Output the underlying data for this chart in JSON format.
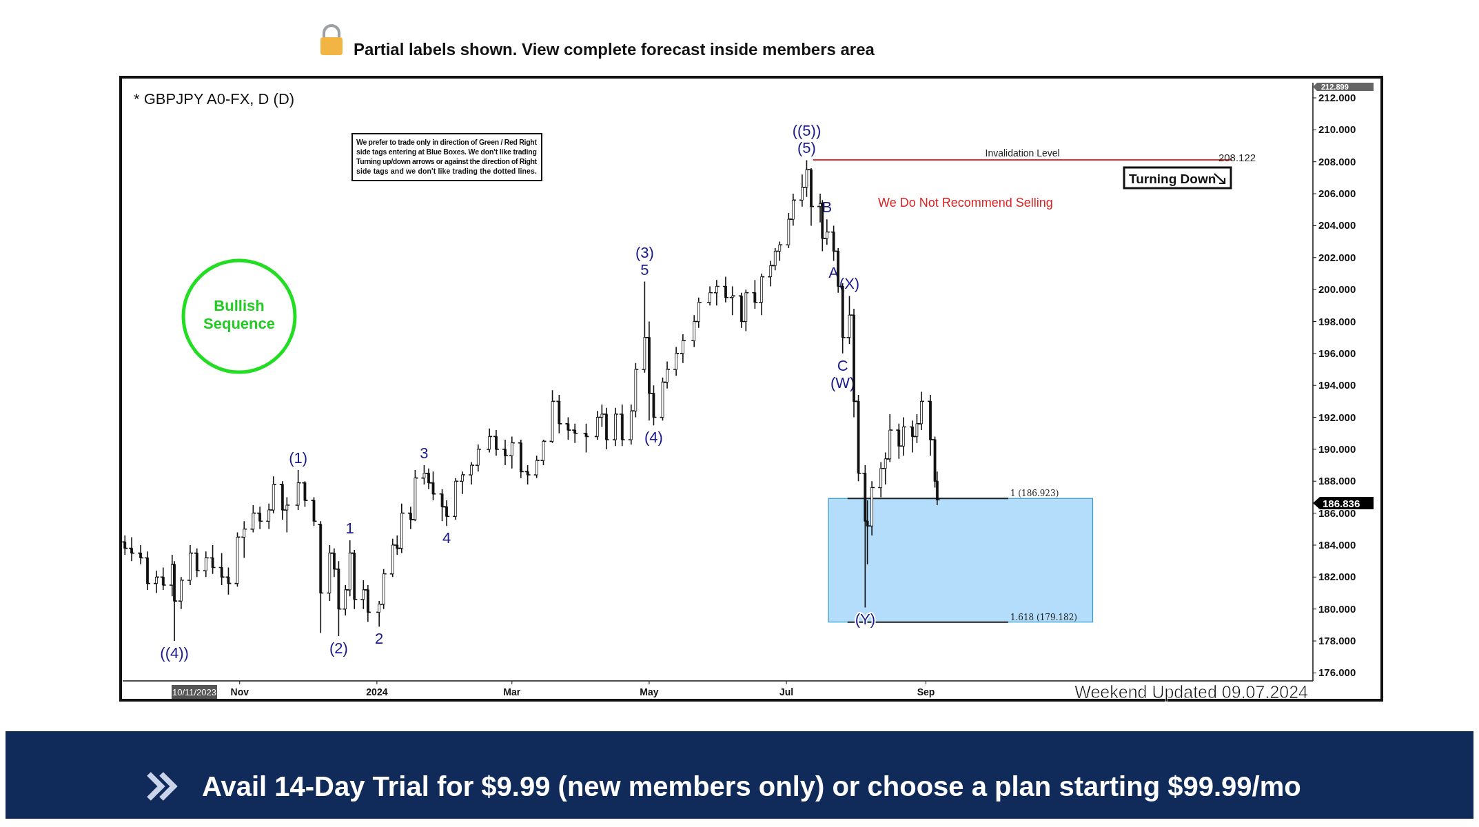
{
  "chart_data": {
    "type": "candlestick",
    "title": "* GBPJPY A0-FX, D (D)",
    "x": [
      "2023-09-11",
      "2023-09-14",
      "2023-09-18",
      "2023-09-21",
      "2023-09-25",
      "2023-09-28",
      "2023-10-02",
      "2023-10-03",
      "2023-10-06",
      "2023-10-10",
      "2023-10-13",
      "2023-10-17",
      "2023-10-20",
      "2023-10-24",
      "2023-10-27",
      "2023-10-31",
      "2023-11-03",
      "2023-11-07",
      "2023-11-10",
      "2023-11-14",
      "2023-11-16",
      "2023-11-20",
      "2023-11-22",
      "2023-11-27",
      "2023-11-30",
      "2023-12-04",
      "2023-12-07",
      "2023-12-11",
      "2023-12-13",
      "2023-12-15",
      "2023-12-18",
      "2023-12-20",
      "2023-12-22",
      "2023-12-26",
      "2023-12-28",
      "2024-01-02",
      "2024-01-04",
      "2024-01-08",
      "2024-01-10",
      "2024-01-12",
      "2024-01-16",
      "2024-01-18",
      "2024-01-22",
      "2024-01-24",
      "2024-01-26",
      "2024-01-30",
      "2024-02-01",
      "2024-02-05",
      "2024-02-08",
      "2024-02-12",
      "2024-02-15",
      "2024-02-20",
      "2024-02-23",
      "2024-02-27",
      "2024-03-01",
      "2024-03-05",
      "2024-03-08",
      "2024-03-12",
      "2024-03-15",
      "2024-03-19",
      "2024-03-22",
      "2024-03-26",
      "2024-03-29",
      "2024-04-03",
      "2024-04-08",
      "2024-04-10",
      "2024-04-12",
      "2024-04-16",
      "2024-04-19",
      "2024-04-23",
      "2024-04-25",
      "2024-04-29",
      "2024-05-01",
      "2024-05-03",
      "2024-05-07",
      "2024-05-09",
      "2024-05-13",
      "2024-05-16",
      "2024-05-21",
      "2024-05-23",
      "2024-05-28",
      "2024-05-31",
      "2024-06-04",
      "2024-06-07",
      "2024-06-11",
      "2024-06-13",
      "2024-06-17",
      "2024-06-20",
      "2024-06-24",
      "2024-06-26",
      "2024-06-28",
      "2024-07-02",
      "2024-07-04",
      "2024-07-08",
      "2024-07-10",
      "2024-07-12",
      "2024-07-16",
      "2024-07-17",
      "2024-07-19",
      "2024-07-22",
      "2024-07-24",
      "2024-07-26",
      "2024-07-29",
      "2024-07-31",
      "2024-08-02",
      "2024-08-05",
      "2024-08-06",
      "2024-08-08",
      "2024-08-12",
      "2024-08-14",
      "2024-08-16",
      "2024-08-20",
      "2024-08-22",
      "2024-08-26",
      "2024-08-28",
      "2024-08-30",
      "2024-09-03",
      "2024-09-05",
      "2024-09-06"
    ],
    "ohlc": [
      [
        184.2,
        184.6,
        183.4,
        183.8
      ],
      [
        183.8,
        184.5,
        183.0,
        183.5
      ],
      [
        183.5,
        184.0,
        182.8,
        183.2
      ],
      [
        183.2,
        183.6,
        181.2,
        181.6
      ],
      [
        181.6,
        182.4,
        181.0,
        182.0
      ],
      [
        182.0,
        182.6,
        181.2,
        181.5
      ],
      [
        181.5,
        183.4,
        180.8,
        182.8
      ],
      [
        182.8,
        183.0,
        178.0,
        180.5
      ],
      [
        180.5,
        182.0,
        180.0,
        181.8
      ],
      [
        181.8,
        184.0,
        181.5,
        183.5
      ],
      [
        183.5,
        183.8,
        182.0,
        182.4
      ],
      [
        182.4,
        183.6,
        182.0,
        183.2
      ],
      [
        183.2,
        184.0,
        182.2,
        182.6
      ],
      [
        182.6,
        183.5,
        181.5,
        182.0
      ],
      [
        182.0,
        182.6,
        180.9,
        181.6
      ],
      [
        181.6,
        184.8,
        181.4,
        184.5
      ],
      [
        184.5,
        185.5,
        183.2,
        185.0
      ],
      [
        185.0,
        186.5,
        184.8,
        186.0
      ],
      [
        186.0,
        186.4,
        185.0,
        185.5
      ],
      [
        185.5,
        186.6,
        185.0,
        186.2
      ],
      [
        186.2,
        188.3,
        186.0,
        187.8
      ],
      [
        187.8,
        188.0,
        185.6,
        186.2
      ],
      [
        186.2,
        187.0,
        184.8,
        186.5
      ],
      [
        186.5,
        188.7,
        186.2,
        187.9
      ],
      [
        187.9,
        188.0,
        186.4,
        186.8
      ],
      [
        186.8,
        187.0,
        185.2,
        185.5
      ],
      [
        185.3,
        185.5,
        178.5,
        181.0
      ],
      [
        181.0,
        184.0,
        180.5,
        183.5
      ],
      [
        183.5,
        183.8,
        182.0,
        182.5
      ],
      [
        182.5,
        183.0,
        178.3,
        180.0
      ],
      [
        180.0,
        181.5,
        179.6,
        181.2
      ],
      [
        181.2,
        184.3,
        180.8,
        183.5
      ],
      [
        183.5,
        183.7,
        180.0,
        180.6
      ],
      [
        180.6,
        181.8,
        180.0,
        181.2
      ],
      [
        181.2,
        181.5,
        179.2,
        179.8
      ],
      [
        179.8,
        180.5,
        178.9,
        180.3
      ],
      [
        180.3,
        182.5,
        180.0,
        182.2
      ],
      [
        182.2,
        184.4,
        182.0,
        184.0
      ],
      [
        184.0,
        184.6,
        183.4,
        183.8
      ],
      [
        183.8,
        186.6,
        183.5,
        186.0
      ],
      [
        186.0,
        186.4,
        185.0,
        185.6
      ],
      [
        185.6,
        188.7,
        185.5,
        188.2
      ],
      [
        188.2,
        189.0,
        187.8,
        188.5
      ],
      [
        188.5,
        188.8,
        187.5,
        187.9
      ],
      [
        187.9,
        188.6,
        186.8,
        187.2
      ],
      [
        187.2,
        187.5,
        185.5,
        186.4
      ],
      [
        186.4,
        186.8,
        185.2,
        185.8
      ],
      [
        185.8,
        188.2,
        185.6,
        188.0
      ],
      [
        188.0,
        188.6,
        187.2,
        188.4
      ],
      [
        188.4,
        189.2,
        187.8,
        189.0
      ],
      [
        189.0,
        190.3,
        188.6,
        190.0
      ],
      [
        190.0,
        191.3,
        189.8,
        190.8
      ],
      [
        190.8,
        191.2,
        189.6,
        190.0
      ],
      [
        190.0,
        190.6,
        189.0,
        189.6
      ],
      [
        189.6,
        190.8,
        188.8,
        190.4
      ],
      [
        190.4,
        190.6,
        188.2,
        188.6
      ],
      [
        188.6,
        189.0,
        187.8,
        188.4
      ],
      [
        188.4,
        189.6,
        188.2,
        189.3
      ],
      [
        189.3,
        190.6,
        189.0,
        190.5
      ],
      [
        190.5,
        193.7,
        190.4,
        193.0
      ],
      [
        193.0,
        193.4,
        191.0,
        191.6
      ],
      [
        191.6,
        192.0,
        190.6,
        191.2
      ],
      [
        191.2,
        191.6,
        190.4,
        191.0
      ],
      [
        191.0,
        191.6,
        189.8,
        190.8
      ],
      [
        190.8,
        192.4,
        190.6,
        192.0
      ],
      [
        192.0,
        192.8,
        191.4,
        192.2
      ],
      [
        192.2,
        192.6,
        190.0,
        190.6
      ],
      [
        190.6,
        192.6,
        190.2,
        192.2
      ],
      [
        192.2,
        192.8,
        190.2,
        190.6
      ],
      [
        190.6,
        192.8,
        190.3,
        192.4
      ],
      [
        192.4,
        195.4,
        192.0,
        195.0
      ],
      [
        195.0,
        200.5,
        194.8,
        197.0
      ],
      [
        197.0,
        198.0,
        191.8,
        193.5
      ],
      [
        193.5,
        194.0,
        191.5,
        192.0
      ],
      [
        192.0,
        194.5,
        191.8,
        194.2
      ],
      [
        194.2,
        195.5,
        193.8,
        195.0
      ],
      [
        195.0,
        196.4,
        194.6,
        196.0
      ],
      [
        196.0,
        197.2,
        195.4,
        196.8
      ],
      [
        196.8,
        198.4,
        196.4,
        198.0
      ],
      [
        198.0,
        199.5,
        197.6,
        199.2
      ],
      [
        199.2,
        200.2,
        199.0,
        199.8
      ],
      [
        199.8,
        200.6,
        199.0,
        200.2
      ],
      [
        200.2,
        200.8,
        199.2,
        199.5
      ],
      [
        199.5,
        200.2,
        198.4,
        199.6
      ],
      [
        199.6,
        199.8,
        197.6,
        198.0
      ],
      [
        198.0,
        200.0,
        197.4,
        199.8
      ],
      [
        199.8,
        200.6,
        198.8,
        199.2
      ],
      [
        199.2,
        201.0,
        198.4,
        200.8
      ],
      [
        200.8,
        201.8,
        200.2,
        201.5
      ],
      [
        201.5,
        202.6,
        201.2,
        202.4
      ],
      [
        202.4,
        203.0,
        201.8,
        202.8
      ],
      [
        202.8,
        204.8,
        202.6,
        204.4
      ],
      [
        204.4,
        206.0,
        204.0,
        205.6
      ],
      [
        205.6,
        207.2,
        205.2,
        206.4
      ],
      [
        206.4,
        208.1,
        205.8,
        207.5
      ],
      [
        207.5,
        207.6,
        204.0,
        205.2
      ],
      [
        205.2,
        206.0,
        204.2,
        205.4
      ],
      [
        205.4,
        205.6,
        202.4,
        203.2
      ],
      [
        203.2,
        204.4,
        202.8,
        203.6
      ],
      [
        203.6,
        204.0,
        201.8,
        202.4
      ],
      [
        202.4,
        202.6,
        199.8,
        200.2
      ],
      [
        200.2,
        200.4,
        196.0,
        197.0
      ],
      [
        197.0,
        199.6,
        196.6,
        198.4
      ],
      [
        198.4,
        198.8,
        192.0,
        193.0
      ],
      [
        193.0,
        193.4,
        188.0,
        188.5
      ],
      [
        188.5,
        189.0,
        180.1,
        185.5
      ],
      [
        185.5,
        186.8,
        182.8,
        185.2
      ],
      [
        185.2,
        188.0,
        184.6,
        187.6
      ],
      [
        187.6,
        189.2,
        187.0,
        188.8
      ],
      [
        188.8,
        189.8,
        187.8,
        189.4
      ],
      [
        189.4,
        192.2,
        189.2,
        191.2
      ],
      [
        191.2,
        191.6,
        189.4,
        190.2
      ],
      [
        190.2,
        192.0,
        189.6,
        191.4
      ],
      [
        191.4,
        191.8,
        189.8,
        190.8
      ],
      [
        190.8,
        192.2,
        190.4,
        191.6
      ],
      [
        191.6,
        193.6,
        191.2,
        193.0
      ],
      [
        193.0,
        193.4,
        189.6,
        190.6
      ],
      [
        190.6,
        190.8,
        187.6,
        188.0
      ],
      [
        188.0,
        188.6,
        186.5,
        186.836
      ]
    ],
    "xlim": [
      "2023-09-10",
      "2025-02-20"
    ],
    "xticks": [
      {
        "value": "2023-11-01",
        "label": "Nov"
      },
      {
        "value": "2024-01-01",
        "label": "2024"
      },
      {
        "value": "2024-03-01",
        "label": "Mar"
      },
      {
        "value": "2024-05-01",
        "label": "May"
      },
      {
        "value": "2024-07-01",
        "label": "Jul"
      },
      {
        "value": "2024-09-01",
        "label": "Sep"
      }
    ],
    "ylim": [
      175.5,
      212.95
    ],
    "yticks": [
      {
        "value": 176,
        "label": "176.000"
      },
      {
        "value": 178,
        "label": "178.000"
      },
      {
        "value": 180,
        "label": "180.000"
      },
      {
        "value": 182,
        "label": "182.000"
      },
      {
        "value": 184,
        "label": "184.000"
      },
      {
        "value": 186,
        "label": "186.000"
      },
      {
        "value": 188,
        "label": "188.000"
      },
      {
        "value": 190,
        "label": "190.000"
      },
      {
        "value": 192,
        "label": "192.000"
      },
      {
        "value": 194,
        "label": "194.000"
      },
      {
        "value": 196,
        "label": "196.000"
      },
      {
        "value": 198,
        "label": "198.000"
      },
      {
        "value": 200,
        "label": "200.000"
      },
      {
        "value": 202,
        "label": "202.000"
      },
      {
        "value": 204,
        "label": "204.000"
      },
      {
        "value": 206,
        "label": "206.000"
      },
      {
        "value": 208,
        "label": "208.000"
      },
      {
        "value": 210,
        "label": "210.000"
      },
      {
        "value": 212,
        "label": "212.000"
      }
    ],
    "ref_lines": [
      {
        "axis": "y",
        "value": 208.122,
        "label": "Invalidation Level",
        "color": "#e03030"
      },
      {
        "axis": "y",
        "value": 186.923,
        "label": "1 (186.923)",
        "color": "#222222"
      },
      {
        "axis": "y",
        "value": 179.182,
        "label": "1.618 (179.182)",
        "color": "#222222"
      }
    ],
    "bands": [
      {
        "axis": "y",
        "from": 179.182,
        "to": 186.923,
        "color": "#b3ddfa"
      }
    ],
    "annotations": [
      "Partial labels shown. View complete forecast inside members area",
      "We prefer to trade only in direction of Green / Red Right side tags entering at Blue Boxes. We don't like trading Turning up/down arrows or against the direction of Right side tags and we don't like trading the dotted lines.",
      "Bullish Sequence",
      "Turning Down",
      "We Do Not Recommend Selling",
      "Weekend Updated 09.07.2024",
      "Avail 14-Day Trial for $9.99 (new members only) or choose a plan starting $99.99/mo",
      "208.122",
      "10/11/2023",
      "212.899",
      "186.836",
      {
        "text": "((4))",
        "x": "2023-10-03",
        "y": 178.0
      },
      {
        "text": "(1)",
        "x": "2023-11-27",
        "y": 188.7
      },
      {
        "text": "(2)",
        "x": "2023-12-15",
        "y": 178.3
      },
      {
        "text": "1",
        "x": "2023-12-20",
        "y": 184.3
      },
      {
        "text": "2",
        "x": "2024-01-02",
        "y": 178.9
      },
      {
        "text": "3",
        "x": "2024-01-22",
        "y": 189.0
      },
      {
        "text": "4",
        "x": "2024-02-01",
        "y": 185.2
      },
      {
        "text": "5",
        "x": "2024-04-29",
        "y": 200.5
      },
      {
        "text": "(3)",
        "x": "2024-04-29",
        "y": 200.5
      },
      {
        "text": "(4)",
        "x": "2024-05-03",
        "y": 191.5
      },
      {
        "text": "(5)",
        "x": "2024-07-10",
        "y": 208.1
      },
      {
        "text": "((5))",
        "x": "2024-07-10",
        "y": 208.1
      },
      {
        "text": "B",
        "x": "2024-07-19",
        "y": 204.4
      },
      {
        "text": "A",
        "x": "2024-07-22",
        "y": 201.8
      },
      {
        "text": "(X)",
        "x": "2024-07-29",
        "y": 199.6
      },
      {
        "text": "C",
        "x": "2024-07-26",
        "y": 196.0
      },
      {
        "text": "(W)",
        "x": "2024-07-26",
        "y": 196.0
      },
      {
        "text": "(Y)",
        "x": "2024-08-05",
        "y": 180.1
      }
    ]
  }
}
